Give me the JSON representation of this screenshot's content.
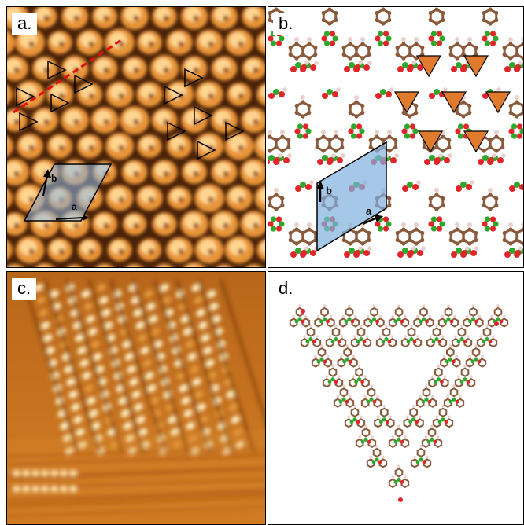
{
  "panels": [
    {
      "id": "a",
      "label": "a.",
      "kind": "stm-image",
      "vectors": {
        "a": "a",
        "b": "b"
      }
    },
    {
      "id": "b",
      "label": "b.",
      "kind": "molecular-model",
      "vectors": {
        "a": "a",
        "b": "b"
      }
    },
    {
      "id": "c",
      "label": "c.",
      "kind": "stm-image"
    },
    {
      "id": "d",
      "label": "d.",
      "kind": "molecular-model-triangle"
    }
  ],
  "colors": {
    "stm_dark": "#3a1a06",
    "stm_mid": "#b86414",
    "stm_bright": "#ffd89a",
    "carbon": "#8a5a3c",
    "hydrogen": "#e8d0cc",
    "oxygen": "#e0262a",
    "boron": "#2ea82a",
    "unit_cell": "#7fb0e0",
    "triangle_marker": "#e07a2c",
    "dashed_line": "#e01010"
  }
}
